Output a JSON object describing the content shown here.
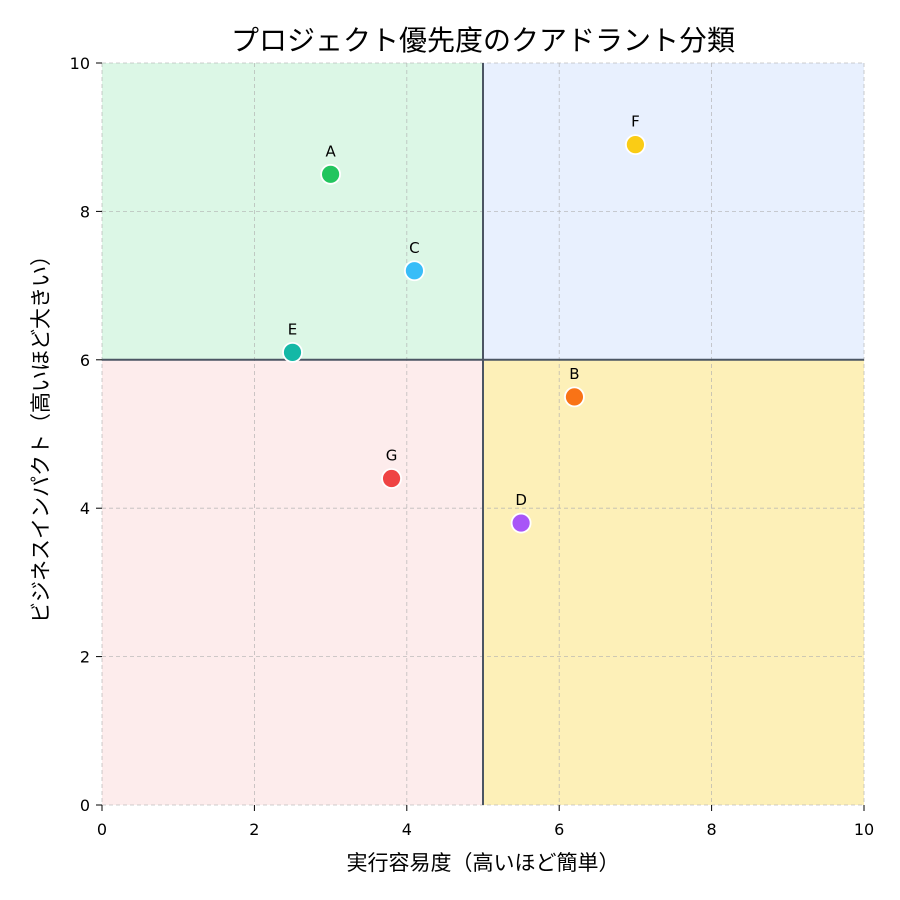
{
  "chart_data": {
    "type": "scatter",
    "title": "プロジェクト優先度のクアドラント分類",
    "xlabel": "実行容易度（高いほど簡単）",
    "ylabel": "ビジネスインパクト（高いほど大きい）",
    "xlim": [
      0,
      10
    ],
    "ylim": [
      0,
      10
    ],
    "xticks": [
      0,
      2,
      4,
      6,
      8,
      10
    ],
    "yticks": [
      0,
      2,
      4,
      6,
      8,
      10
    ],
    "grid": true,
    "divider": {
      "x": 5,
      "y": 6,
      "color": "#4b5563"
    },
    "quadrants": [
      {
        "name": "top-left",
        "x": [
          0,
          5
        ],
        "y": [
          6,
          10
        ],
        "color": "#dcf7e6"
      },
      {
        "name": "top-right",
        "x": [
          5,
          10
        ],
        "y": [
          6,
          10
        ],
        "color": "#e8f0fe"
      },
      {
        "name": "bottom-left",
        "x": [
          0,
          5
        ],
        "y": [
          0,
          6
        ],
        "color": "#fdecec"
      },
      {
        "name": "bottom-right",
        "x": [
          5,
          10
        ],
        "y": [
          0,
          6
        ],
        "color": "#fdf0b8"
      }
    ],
    "points": [
      {
        "label": "A",
        "x": 3.0,
        "y": 8.5,
        "color": "#22c55e"
      },
      {
        "label": "B",
        "x": 6.2,
        "y": 5.5,
        "color": "#f97316"
      },
      {
        "label": "C",
        "x": 4.1,
        "y": 7.2,
        "color": "#38bdf8"
      },
      {
        "label": "D",
        "x": 5.5,
        "y": 3.8,
        "color": "#a855f7"
      },
      {
        "label": "E",
        "x": 2.5,
        "y": 6.1,
        "color": "#14b8a6"
      },
      {
        "label": "F",
        "x": 7.0,
        "y": 8.9,
        "color": "#facc15"
      },
      {
        "label": "G",
        "x": 3.8,
        "y": 4.4,
        "color": "#ef4444"
      }
    ]
  }
}
